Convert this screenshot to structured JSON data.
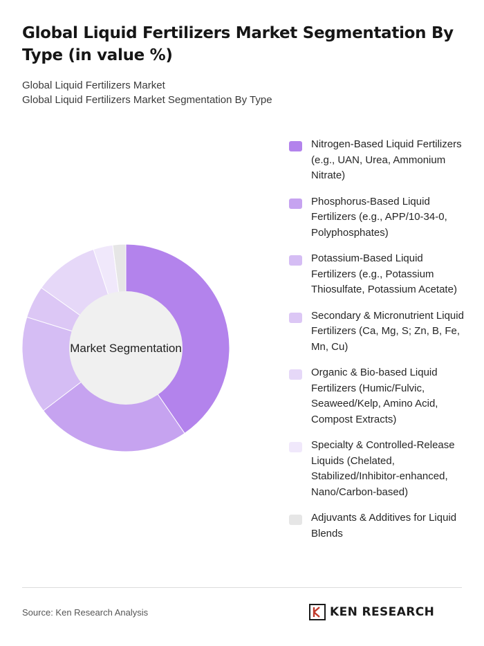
{
  "header": {
    "title": "Global Liquid Fertilizers Market Segmentation By Type (in value %)",
    "breadcrumb": [
      "Global Liquid Fertilizers Market",
      "Global Liquid Fertilizers Market Segmentation By Type"
    ]
  },
  "chart_data": {
    "type": "pie",
    "center_label": "Market Segmentation",
    "categories": [
      "Nitrogen-Based Liquid Fertilizers (e.g., UAN, Urea, Ammonium Nitrate)",
      "Phosphorus-Based Liquid Fertilizers (e.g., APP/10-34-0, Polyphosphates)",
      "Potassium-Based Liquid Fertilizers (e.g., Potassium Thiosulfate, Potassium Acetate)",
      "Secondary & Micronutrient Liquid Fertilizers (Ca, Mg, S; Zn, B, Fe, Mn, Cu)",
      "Organic & Bio-based Liquid Fertilizers (Humic/Fulvic, Seaweed/Kelp, Amino Acid, Compost Extracts)",
      "Specialty & Controlled-Release Liquids (Chelated, Stabilized/Inhibitor-enhanced, Nano/Carbon-based)",
      "Adjuvants & Additives for Liquid Blends"
    ],
    "values": [
      40,
      24,
      15,
      5,
      10,
      3,
      2
    ],
    "colors": [
      "#b383ec",
      "#c6a3f0",
      "#d5bdf4",
      "#dcc7f5",
      "#e6d8f8",
      "#f0e8fb",
      "#e6e6e6"
    ],
    "hole_color": "#f0f0f0",
    "legend_position": "right"
  },
  "footer": {
    "source": "Source: Ken Research Analysis",
    "logo_text": "KEN RESEARCH"
  }
}
